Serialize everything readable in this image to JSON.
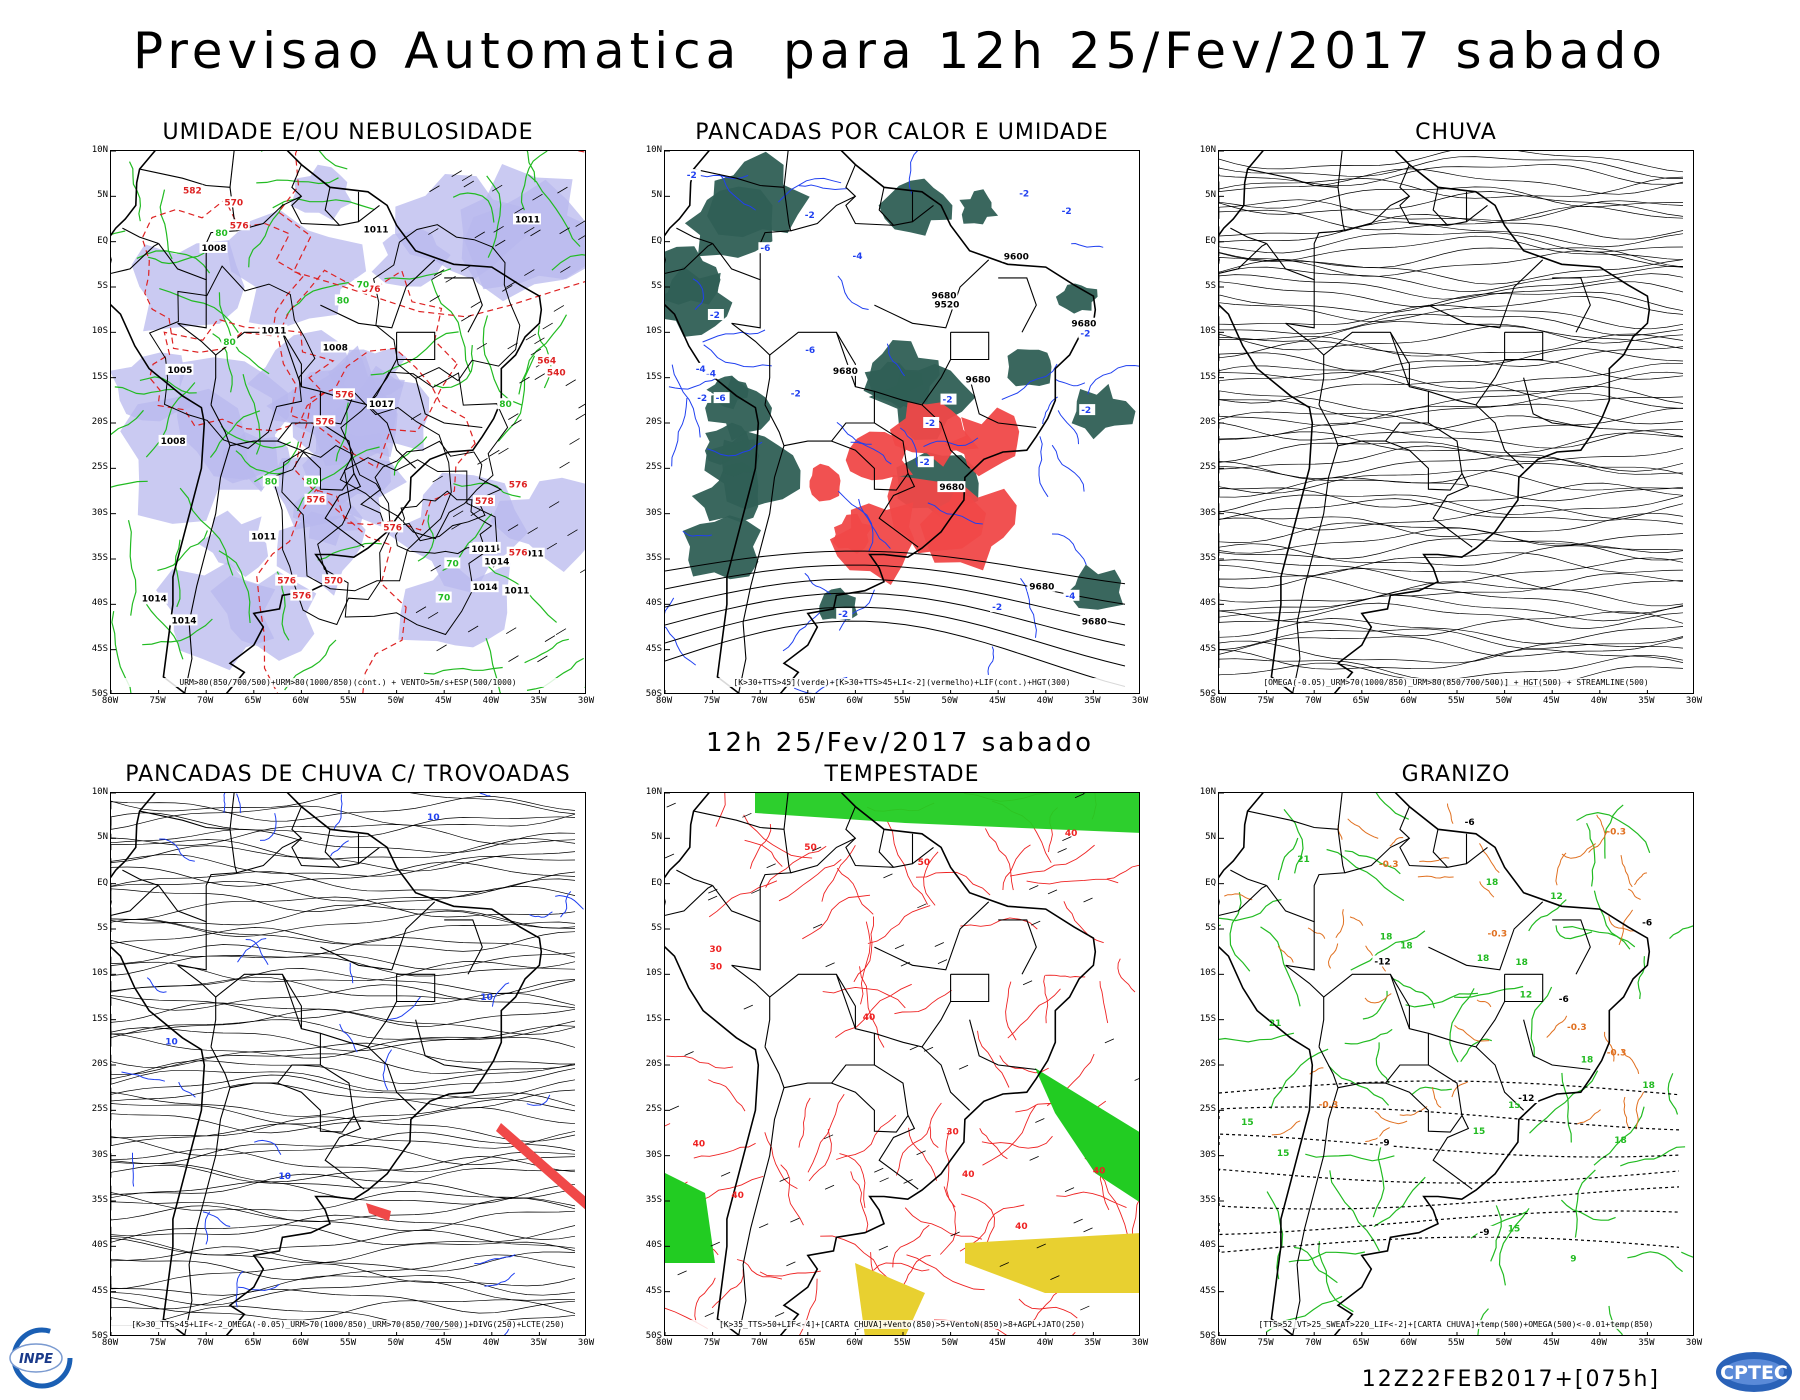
{
  "title": "Previsao Automatica  para 12h 25/Fev/2017 sabado",
  "subtitle": "12h 25/Fev/2017 sabado",
  "run_label": "12Z22FEB2017+[075h]",
  "logos": {
    "inpe": "INPE",
    "cptec": "CPTEC"
  },
  "lat_labels": [
    "10N",
    "5N",
    "EQ",
    "5S",
    "10S",
    "15S",
    "20S",
    "25S",
    "30S",
    "35S",
    "40S",
    "45S",
    "50S"
  ],
  "lon_labels": [
    "80W",
    "75W",
    "70W",
    "65W",
    "60W",
    "55W",
    "50W",
    "45W",
    "40W",
    "35W",
    "30W"
  ],
  "panels": [
    {
      "title": "UMIDADE E/OU NEBULOSIDADE",
      "legend": "URM>80(850/700/500)+URM>80(1000/850)(cont.) + VENTO>5m/s+ESP(500/1000)",
      "contour_labels_black": [
        "1014",
        "1011",
        "1011",
        "1011",
        "1011",
        "1014",
        "1008",
        "1005",
        "1008",
        "1014",
        "1011",
        "1014",
        "1011",
        "1011",
        "1008",
        "1017",
        "1014"
      ],
      "contour_labels_red": [
        "576",
        "576",
        "576",
        "576",
        "578",
        "576",
        "582",
        "576",
        "576",
        "576",
        "570",
        "576",
        "564",
        "570",
        "576",
        "540"
      ],
      "contour_labels_green": [
        "80",
        "80",
        "80",
        "80",
        "70",
        "80",
        "70",
        "80",
        "70"
      ],
      "colors": {
        "shade": "#b8b8ee",
        "green": "#22bb22",
        "red": "#dd2222"
      }
    },
    {
      "title": "PANCADAS POR CALOR E UMIDADE",
      "legend": "[K>30+TTS>45](verde)+[K>30+TTS>45+LI<-2](vermelho)+LIF(cont.)+HGT(300)",
      "contour_labels_black": [
        "9680",
        "9680",
        "9680",
        "9680",
        "9680",
        "9680",
        "9680",
        "9600",
        "9520"
      ],
      "contour_labels_blue": [
        "-2",
        "-2",
        "-2",
        "-6",
        "-2",
        "-2",
        "-2",
        "-2",
        "-4",
        "-2",
        "-4",
        "-2",
        "-4",
        "-6",
        "-2",
        "-2",
        "-2",
        "-2",
        "-4",
        "-6",
        "-2"
      ],
      "colors": {
        "green": "#2f5f55",
        "red": "#f04848",
        "blue": "#2040f0"
      }
    },
    {
      "title": "CHUVA",
      "legend": "[OMEGA(-0.05)_URM>70(1000/850)_URM>80(850/700/500)] + HGT(500) + STREAMLINE(500)",
      "colors": {
        "stream": "#000000"
      }
    },
    {
      "title": "PANCADAS DE CHUVA C/ TROVOADAS",
      "legend": "[K>30_TTS>45+LIF<-2_OMEGA(-0.05)_URM>70(1000/850)_URM>70(850/700/500)]+DIVG(250)+LCTE(250)",
      "contour_labels_blue": [
        "10",
        "10",
        "10",
        "10"
      ],
      "colors": {
        "blue": "#2040f0",
        "red": "#f04848"
      }
    },
    {
      "title": "TEMPESTADE",
      "legend": "[K>35_TTS>50+LIF<-4]+[CARTA CHUVA]+Vento(850)>5+VentoN(850)>8+AGPL+JATO(250)",
      "contour_labels_red": [
        "30",
        "40",
        "50",
        "40",
        "50",
        "40",
        "40",
        "40",
        "40",
        "30",
        "40",
        "30"
      ],
      "colors": {
        "red": "#ee2222",
        "green": "#22cc22",
        "yellow": "#e8d030"
      }
    },
    {
      "title": "GRANIZO",
      "legend": "[TTS>52_VT>25_SWEAT>220_LIF<-2]+[CARTA CHUVA]+temp(500)+OMEGA(500)<-0.01+temp(850)",
      "contour_labels_green": [
        "18",
        "15",
        "18",
        "18",
        "18",
        "21",
        "18",
        "18",
        "15",
        "15",
        "15",
        "12",
        "9",
        "12",
        "15",
        "18",
        "21",
        "18"
      ],
      "contour_labels_orange": [
        "-0.3",
        "-0.3",
        "-0.3",
        "-0.3",
        "-0.3",
        "-0.3"
      ],
      "contour_labels_black": [
        "-6",
        "-6",
        "-9",
        "-12",
        "-12",
        "-9",
        "-6"
      ],
      "colors": {
        "green": "#22bb22",
        "orange": "#e07020",
        "black": "#000000"
      }
    }
  ]
}
